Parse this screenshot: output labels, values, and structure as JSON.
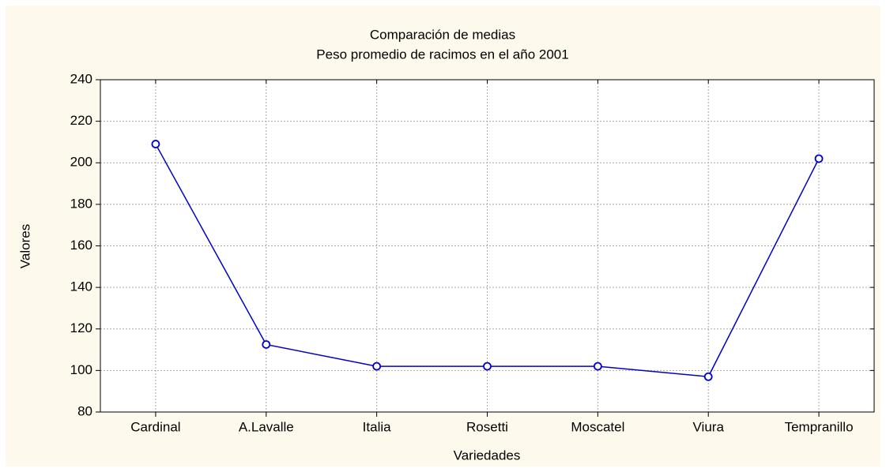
{
  "chart_data": {
    "type": "line",
    "title": "Comparación de medias",
    "subtitle": "Peso promedio de racimos en el año 2001",
    "x_label": "Variedades",
    "y_label": "Valores",
    "categories": [
      "Cardinal",
      "A.Lavalle",
      "Italia",
      "Rosetti",
      "Moscatel",
      "Viura",
      "Tempranillo"
    ],
    "series": [
      {
        "color": "#0000cc",
        "values": [
          209,
          112.5,
          102,
          102,
          102,
          97,
          202
        ]
      }
    ],
    "ylim": [
      80,
      240
    ],
    "yticks": [
      80,
      100,
      120,
      140,
      160,
      180,
      200,
      220,
      240
    ],
    "grid": true
  }
}
